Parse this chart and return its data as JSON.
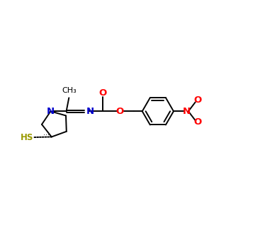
{
  "background_color": "#ffffff",
  "figsize": [
    3.74,
    3.35
  ],
  "dpi": 100,
  "bond_color": "#000000",
  "N_color": "#0000cc",
  "O_color": "#ff0000",
  "S_color": "#999900",
  "lw": 1.4,
  "fs": 8.5,
  "xlim": [
    -4.5,
    7.5
  ],
  "ylim": [
    -3.5,
    3.5
  ]
}
